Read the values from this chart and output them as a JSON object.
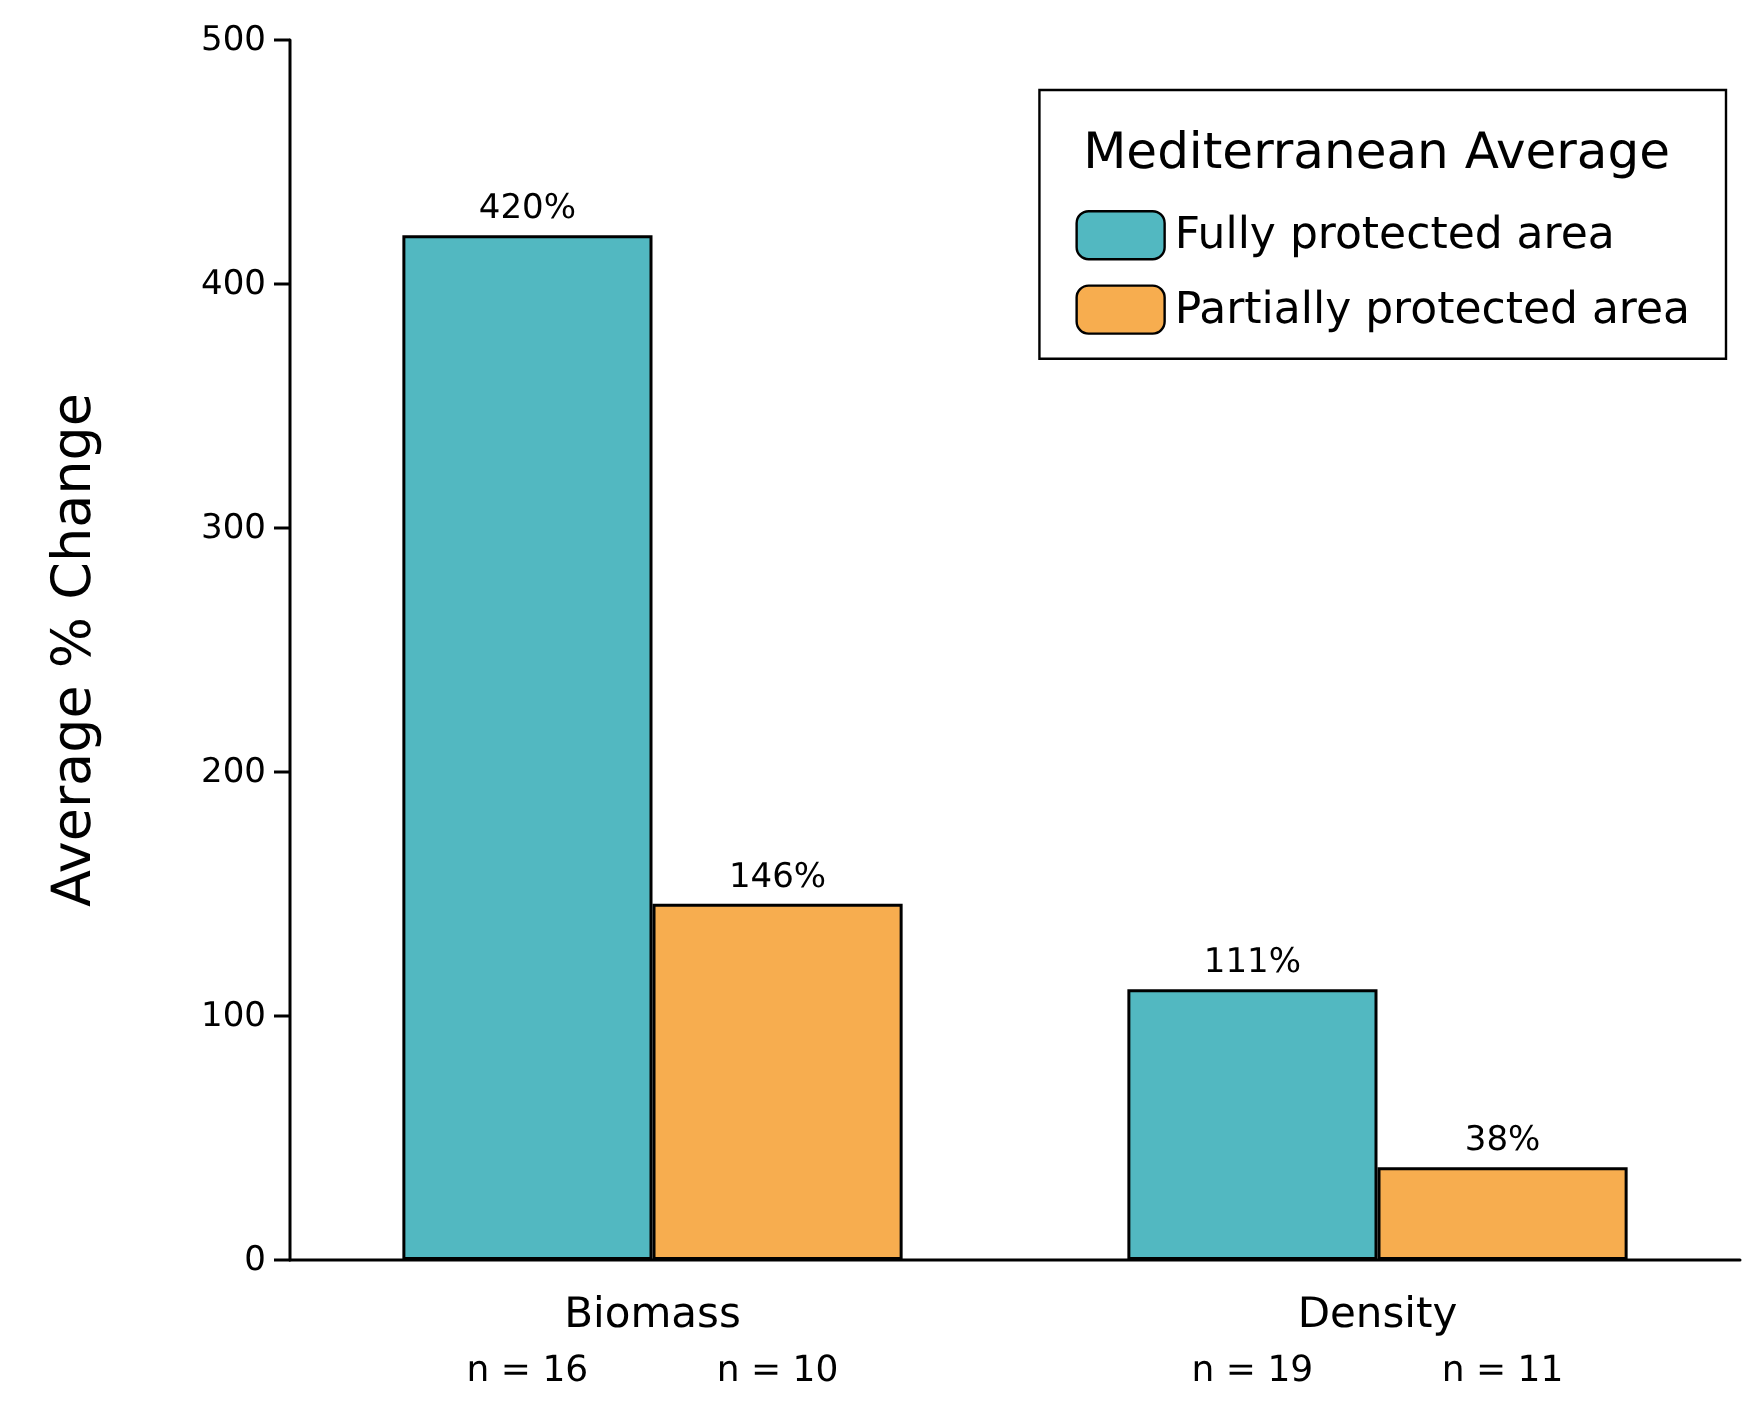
{
  "chart_data": {
    "type": "bar",
    "ylabel": "Average % Change",
    "legend_title": "Mediterranean Average",
    "categories": [
      "Biomass",
      "Density"
    ],
    "series": [
      {
        "name": "Fully protected area",
        "color": "#52b8c1",
        "values": [
          420,
          111
        ],
        "value_labels": [
          "420%",
          "111%"
        ]
      },
      {
        "name": "Partially protected area",
        "color": "#f7ad4f",
        "values": [
          146,
          38
        ],
        "value_labels": [
          "146%",
          "38%"
        ]
      }
    ],
    "ylim": [
      0,
      500
    ],
    "yticks": [
      0,
      100,
      200,
      300,
      400,
      500
    ],
    "grid": false,
    "legend": "top right",
    "annotations": [
      "n = 16",
      "n = 10",
      "n = 19",
      "n = 11"
    ]
  }
}
